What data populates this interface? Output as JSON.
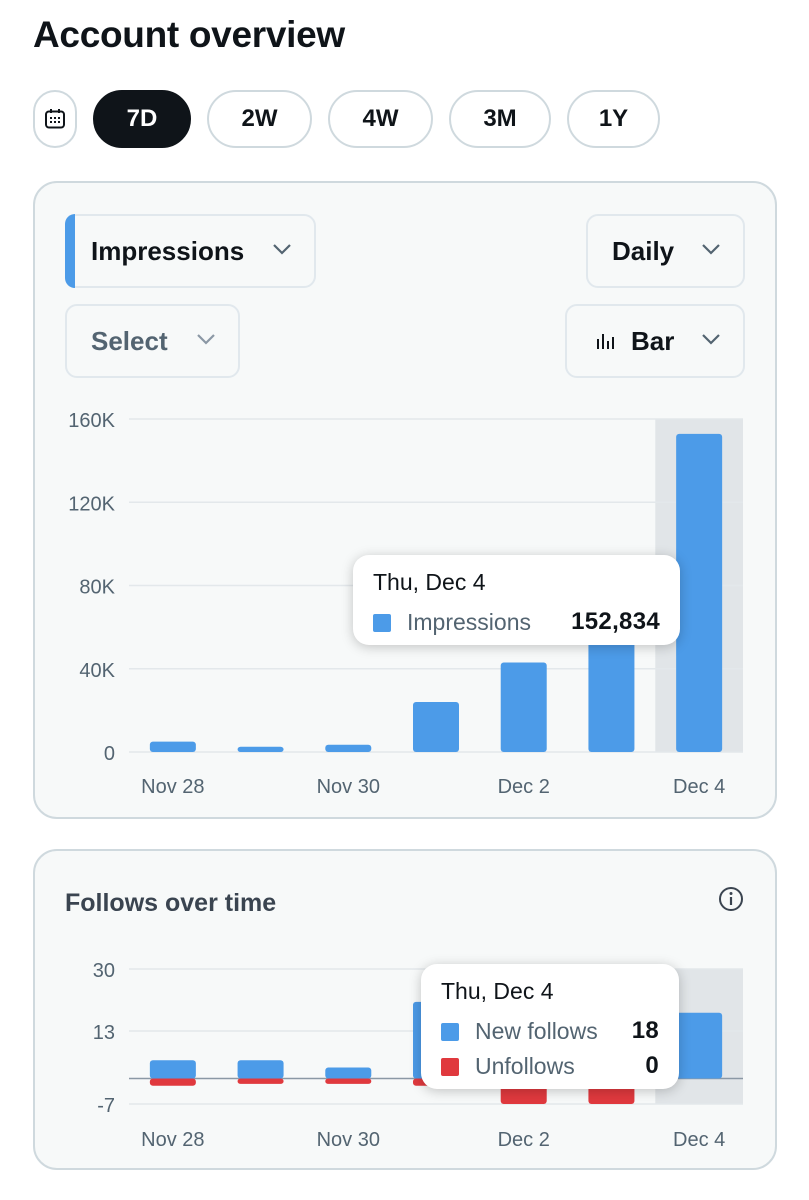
{
  "header": {
    "title": "Account overview"
  },
  "ranges": {
    "options": [
      "7D",
      "2W",
      "4W",
      "3M",
      "1Y"
    ],
    "selected": "7D"
  },
  "impressions_card": {
    "metric_dropdown": "Impressions",
    "interval_dropdown": "Daily",
    "compare_dropdown": "Select",
    "chart_type_dropdown": "Bar",
    "accent_color": "#4c9be8",
    "tooltip": {
      "date": "Thu, Dec 4",
      "label": "Impressions",
      "value": "152,834"
    }
  },
  "follows_card": {
    "title": "Follows over time",
    "tooltip": {
      "date": "Thu, Dec 4",
      "rows": [
        {
          "label": "New follows",
          "value": "18",
          "color": "#4c9be8"
        },
        {
          "label": "Unfollows",
          "value": "0",
          "color": "#e0393e"
        }
      ]
    }
  },
  "chart_data": [
    {
      "type": "bar",
      "categories": [
        "Nov 28",
        "Nov 29",
        "Nov 30",
        "Dec 1",
        "Dec 2",
        "Dec 3",
        "Dec 4"
      ],
      "x_tick_labels": [
        "Nov 28",
        "Nov 30",
        "Dec 2",
        "Dec 4"
      ],
      "y_tick_labels": [
        "160K",
        "120K",
        "80K",
        "40K",
        "0"
      ],
      "ylim": [
        0,
        160000
      ],
      "series": [
        {
          "name": "Impressions",
          "color": "#4c9be8",
          "values": [
            5000,
            2500,
            3500,
            24000,
            43000,
            57000,
            152834
          ]
        }
      ],
      "highlighted_category": "Dec 4",
      "grid": true
    },
    {
      "type": "bar",
      "categories": [
        "Nov 28",
        "Nov 29",
        "Nov 30",
        "Dec 1",
        "Dec 2",
        "Dec 3",
        "Dec 4"
      ],
      "x_tick_labels": [
        "Nov 28",
        "Nov 30",
        "Dec 2",
        "Dec 4"
      ],
      "y_tick_labels": [
        "30",
        "13",
        "-7"
      ],
      "ylim": [
        -7,
        30
      ],
      "series": [
        {
          "name": "New follows",
          "color": "#4c9be8",
          "values": [
            5,
            5,
            3,
            21,
            16,
            30,
            18
          ]
        },
        {
          "name": "Unfollows",
          "color": "#e0393e",
          "values": [
            -2,
            -1.5,
            -1.5,
            -2,
            -7,
            -7,
            0
          ]
        }
      ],
      "highlighted_category": "Dec 4",
      "grid": true
    }
  ]
}
